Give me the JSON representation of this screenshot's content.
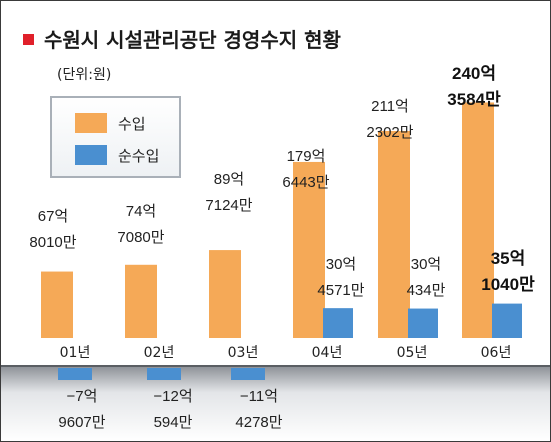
{
  "chart_data": {
    "type": "bar",
    "title": "수원시 시설관리공단 경영수지 현황",
    "unit": "(단위:원)",
    "categories": [
      "01년",
      "02년",
      "03년",
      "04년",
      "05년",
      "06년"
    ],
    "series": [
      {
        "name": "수입",
        "color": "#f5a957",
        "values": [
          6780100000,
          7470800000,
          8971240000,
          17964430000,
          21123020000,
          24035840000
        ],
        "labels": [
          [
            "67억",
            "8010만"
          ],
          [
            "74억",
            "7080만"
          ],
          [
            "89억",
            "7124만"
          ],
          [
            "179억",
            "6443만"
          ],
          [
            "211억",
            "2302만"
          ],
          [
            "240억",
            "3584만"
          ]
        ]
      },
      {
        "name": "순수입",
        "color": "#4a8fd0",
        "values": [
          -796070000,
          -1205940000,
          -1142780000,
          3045710000,
          3004340000,
          3510400000
        ],
        "labels": [
          [
            "−7억",
            "9607만"
          ],
          [
            "−12억",
            "594만"
          ],
          [
            "−11억",
            "4278만"
          ],
          [
            "30억",
            "4571만"
          ],
          [
            "30억",
            "434만"
          ],
          [
            "35억",
            "1040만"
          ]
        ]
      }
    ],
    "legend_position": "top-left",
    "grid": false
  }
}
